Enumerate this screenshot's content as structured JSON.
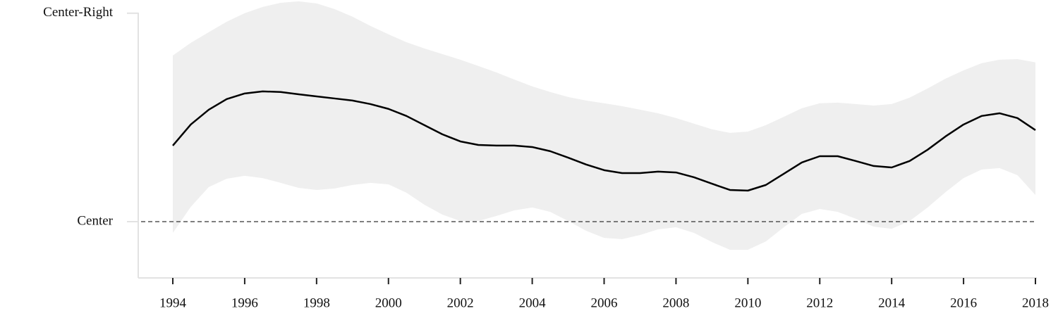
{
  "chart_data": {
    "type": "line",
    "x": [
      1994,
      1994.5,
      1995,
      1995.5,
      1996,
      1996.5,
      1997,
      1997.5,
      1998,
      1998.5,
      1999,
      1999.5,
      2000,
      2000.5,
      2001,
      2001.5,
      2002,
      2002.5,
      2003,
      2003.5,
      2004,
      2004.5,
      2005,
      2005.5,
      2006,
      2006.5,
      2007,
      2007.5,
      2008,
      2008.5,
      2009,
      2009.5,
      2010,
      2010.5,
      2011,
      2011.5,
      2012,
      2012.5,
      2013,
      2013.5,
      2014,
      2014.5,
      2015,
      2015.5,
      2016,
      2016.5,
      2017,
      2017.5,
      2018
    ],
    "values": [
      0.365,
      0.466,
      0.537,
      0.588,
      0.615,
      0.625,
      0.622,
      0.611,
      0.601,
      0.591,
      0.581,
      0.564,
      0.541,
      0.507,
      0.463,
      0.419,
      0.385,
      0.368,
      0.365,
      0.365,
      0.358,
      0.338,
      0.307,
      0.274,
      0.247,
      0.233,
      0.233,
      0.24,
      0.236,
      0.213,
      0.182,
      0.152,
      0.149,
      0.176,
      0.23,
      0.284,
      0.314,
      0.314,
      0.291,
      0.267,
      0.26,
      0.291,
      0.345,
      0.409,
      0.466,
      0.507,
      0.52,
      0.497,
      0.439
    ],
    "upper": [
      0.797,
      0.858,
      0.909,
      0.959,
      1.0,
      1.03,
      1.05,
      1.057,
      1.047,
      1.02,
      0.983,
      0.939,
      0.899,
      0.861,
      0.831,
      0.804,
      0.777,
      0.747,
      0.716,
      0.682,
      0.649,
      0.622,
      0.598,
      0.581,
      0.568,
      0.554,
      0.537,
      0.52,
      0.497,
      0.47,
      0.443,
      0.426,
      0.432,
      0.463,
      0.503,
      0.544,
      0.568,
      0.571,
      0.564,
      0.557,
      0.564,
      0.595,
      0.639,
      0.686,
      0.726,
      0.76,
      0.777,
      0.78,
      0.764
    ],
    "lower": [
      -0.054,
      0.071,
      0.166,
      0.206,
      0.22,
      0.209,
      0.186,
      0.162,
      0.152,
      0.159,
      0.176,
      0.186,
      0.179,
      0.139,
      0.081,
      0.034,
      0.003,
      0.003,
      0.027,
      0.054,
      0.068,
      0.047,
      0.003,
      -0.044,
      -0.078,
      -0.084,
      -0.064,
      -0.037,
      -0.027,
      -0.054,
      -0.098,
      -0.135,
      -0.135,
      -0.095,
      -0.027,
      0.037,
      0.061,
      0.047,
      0.014,
      -0.024,
      -0.034,
      0.003,
      0.068,
      0.142,
      0.209,
      0.25,
      0.257,
      0.223,
      0.128
    ],
    "color": "#000000",
    "band_color": "#efefef",
    "reference_line": 0,
    "xlim": [
      1994,
      2018
    ],
    "xticks": [
      1994,
      1996,
      1998,
      2000,
      2002,
      2004,
      2006,
      2008,
      2010,
      2012,
      2014,
      2016,
      2018
    ],
    "ylim": [
      -0.27,
      1.06
    ],
    "yticks": [
      {
        "value": 0,
        "label": "Center"
      },
      {
        "value": 1,
        "label": "Center-Right"
      }
    ]
  }
}
